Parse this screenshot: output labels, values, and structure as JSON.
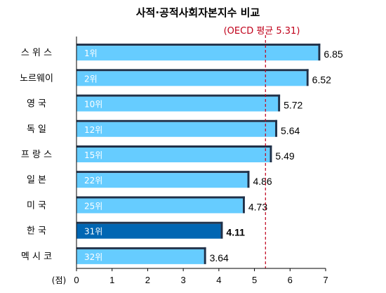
{
  "chart_data": {
    "type": "bar",
    "orientation": "horizontal",
    "title": "사적·공적사회자본지수 비교",
    "categories": [
      "스 위 스",
      "노르웨이",
      "영 국",
      "독 일",
      "프 랑 스",
      "일 본",
      "미 국",
      "한 국",
      "멕 시 코"
    ],
    "ranks": [
      "1위",
      "2위",
      "10위",
      "12위",
      "15위",
      "22위",
      "25위",
      "31위",
      "32위"
    ],
    "values": [
      6.85,
      6.52,
      5.72,
      5.64,
      5.49,
      4.86,
      4.73,
      4.11,
      3.64
    ],
    "value_labels": [
      "6.85",
      "6.52",
      "5.72",
      "5.64",
      "5.49",
      "4.86",
      "4.73",
      "4.11",
      "3.64"
    ],
    "highlight_category": "한 국",
    "reference_line": {
      "value": 5.31,
      "label": "(OECD 평균 5.31)",
      "color": "#c0001a"
    },
    "xlim": [
      0,
      7
    ],
    "xticks": [
      "0",
      "1",
      "2",
      "3",
      "4",
      "5",
      "6",
      "7"
    ],
    "xunit": "(점)",
    "grid": false,
    "colors": {
      "bar": "#66ccff",
      "highlight_bar": "#0066b3",
      "bar_shadow": "#1f3048",
      "axis": "#000000"
    }
  }
}
